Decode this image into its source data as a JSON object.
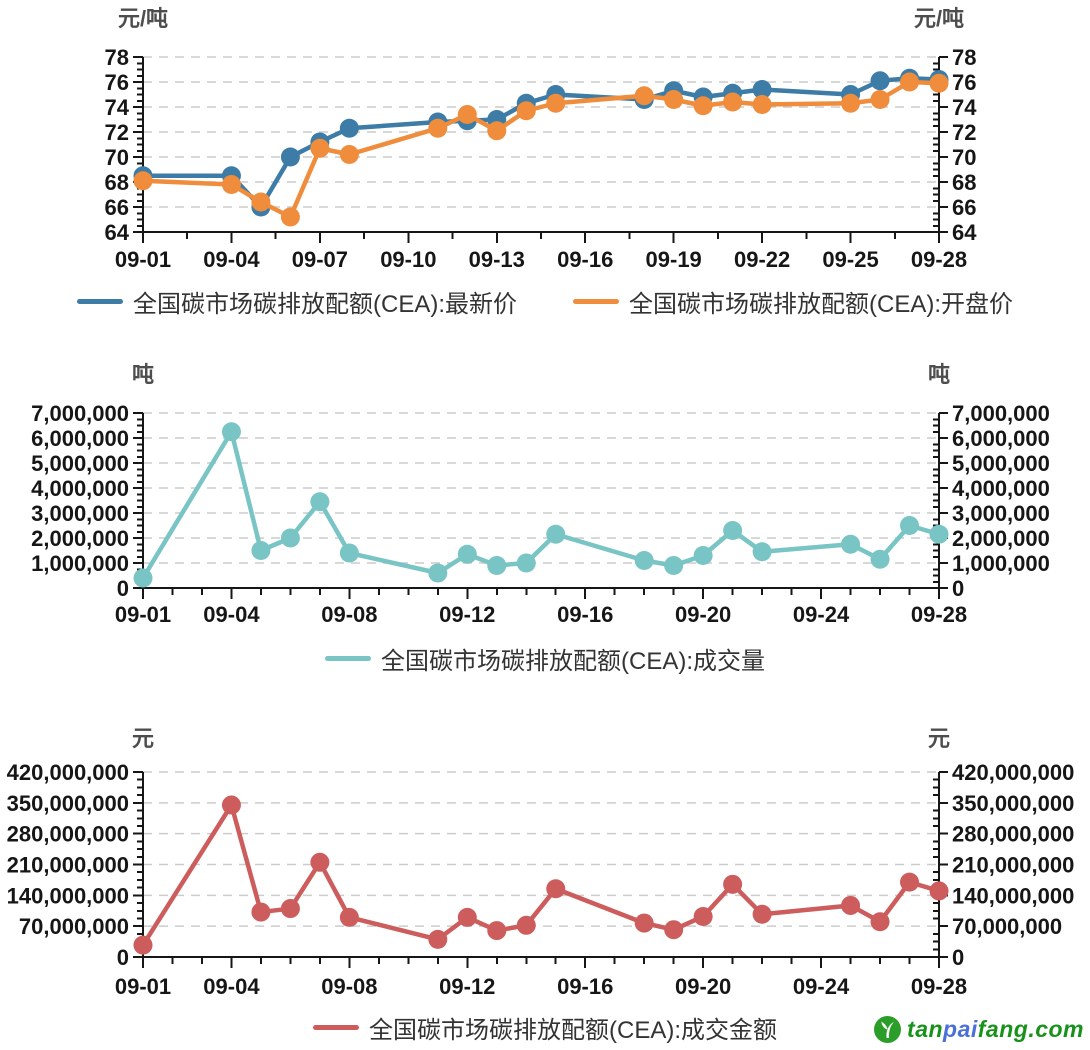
{
  "page": {
    "background": "#ffffff"
  },
  "axis_style": {
    "axis_color": "#161616",
    "grid_color": "#cccccc",
    "grid_style": "dashed",
    "tick_label_color": "#161616",
    "unit_label_color": "#4d4d4d",
    "legend_text_color": "#333333"
  },
  "chart_data": [
    {
      "type": "line",
      "title": "",
      "unit_left": "元/吨",
      "unit_right": "元/吨",
      "x_dates": [
        "09-01",
        "09-04",
        "09-05",
        "09-06",
        "09-07",
        "09-08",
        "09-11",
        "09-12",
        "09-13",
        "09-14",
        "09-15",
        "09-18",
        "09-19",
        "09-20",
        "09-21",
        "09-22",
        "09-25",
        "09-26",
        "09-27",
        "09-28"
      ],
      "x_axis_tick_labels": [
        "09-01",
        "09-04",
        "09-07",
        "09-10",
        "09-13",
        "09-16",
        "09-19",
        "09-22",
        "09-25",
        "09-28"
      ],
      "ylim": [
        64,
        78
      ],
      "y_ticks": [
        64,
        66,
        68,
        70,
        72,
        74,
        76,
        78
      ],
      "grid": "horizontal-dashed",
      "legend_position": "bottom-center",
      "series": [
        {
          "name": "全国碳市场碳排放配额(CEA):最新价",
          "color": "#3d7ca6",
          "values": [
            68.5,
            68.5,
            66.0,
            70.0,
            71.2,
            72.3,
            72.8,
            72.9,
            73.0,
            74.3,
            75.0,
            74.6,
            75.3,
            74.8,
            75.1,
            75.4,
            75.0,
            76.1,
            76.3,
            76.2
          ]
        },
        {
          "name": "全国碳市场碳排放配额(CEA):开盘价",
          "color": "#ef8d3c",
          "values": [
            68.1,
            67.8,
            66.4,
            65.2,
            70.7,
            70.2,
            72.3,
            73.4,
            72.1,
            73.7,
            74.3,
            74.9,
            74.6,
            74.1,
            74.4,
            74.2,
            74.3,
            74.6,
            76.0,
            75.9
          ]
        }
      ]
    },
    {
      "type": "line",
      "title": "",
      "unit_left": "吨",
      "unit_right": "吨",
      "x_dates": [
        "09-01",
        "09-04",
        "09-05",
        "09-06",
        "09-07",
        "09-08",
        "09-11",
        "09-12",
        "09-13",
        "09-14",
        "09-15",
        "09-18",
        "09-19",
        "09-20",
        "09-21",
        "09-22",
        "09-25",
        "09-26",
        "09-27",
        "09-28"
      ],
      "x_axis_tick_labels": [
        "09-01",
        "09-04",
        "09-08",
        "09-12",
        "09-16",
        "09-20",
        "09-24",
        "09-28"
      ],
      "ylim": [
        0,
        7000000
      ],
      "y_ticks": [
        0,
        1000000,
        2000000,
        3000000,
        4000000,
        5000000,
        6000000,
        7000000
      ],
      "grid": "horizontal-dashed",
      "legend_position": "bottom-center",
      "series": [
        {
          "name": "全国碳市场碳排放配额(CEA):成交量",
          "color": "#79c4c4",
          "values": [
            400000,
            6250000,
            1500000,
            2000000,
            3450000,
            1400000,
            600000,
            1350000,
            900000,
            1000000,
            2150000,
            1100000,
            900000,
            1300000,
            2300000,
            1450000,
            1750000,
            1150000,
            2500000,
            2150000
          ]
        }
      ]
    },
    {
      "type": "line",
      "title": "",
      "unit_left": "元",
      "unit_right": "元",
      "x_dates": [
        "09-01",
        "09-04",
        "09-05",
        "09-06",
        "09-07",
        "09-08",
        "09-11",
        "09-12",
        "09-13",
        "09-14",
        "09-15",
        "09-18",
        "09-19",
        "09-20",
        "09-21",
        "09-22",
        "09-25",
        "09-26",
        "09-27",
        "09-28"
      ],
      "x_axis_tick_labels": [
        "09-01",
        "09-04",
        "09-08",
        "09-12",
        "09-16",
        "09-20",
        "09-24",
        "09-28"
      ],
      "ylim": [
        0,
        420000000
      ],
      "y_ticks": [
        0,
        70000000,
        140000000,
        210000000,
        280000000,
        350000000,
        420000000
      ],
      "grid": "horizontal-dashed",
      "legend_position": "bottom-center",
      "series": [
        {
          "name": "全国碳市场碳排放配额(CEA):成交金额",
          "color": "#cd5c5c",
          "values": [
            27000000,
            345000000,
            102000000,
            110000000,
            215000000,
            90000000,
            40000000,
            90000000,
            60000000,
            72000000,
            155000000,
            77000000,
            62000000,
            92000000,
            165000000,
            97000000,
            117000000,
            80000000,
            170000000,
            150000000
          ]
        }
      ]
    }
  ],
  "watermark": {
    "icon": "leaf-circle-icon",
    "icon_color": "#2a9e28",
    "segments": [
      {
        "text": "tan",
        "color": "#18921b"
      },
      {
        "text": "pai",
        "color": "#4a6fd6"
      },
      {
        "text": "fang.com",
        "color": "#18921b"
      }
    ]
  }
}
